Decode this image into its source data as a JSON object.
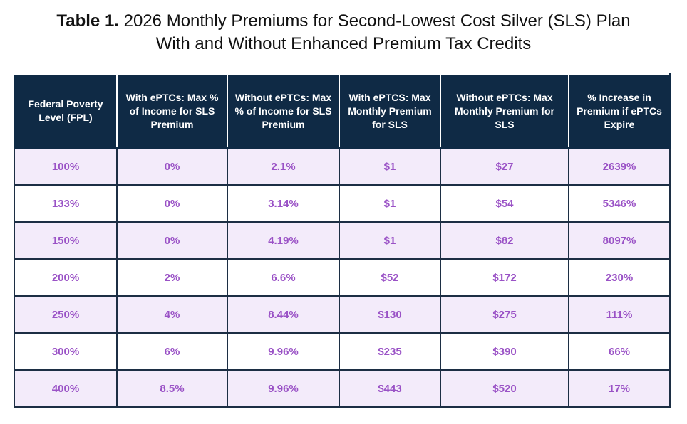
{
  "title": {
    "prefix": "Table 1.",
    "line1": "2026 Monthly Premiums for Second-Lowest Cost Silver (SLS) Plan",
    "line2": "With and Without Enhanced Premium Tax Credits"
  },
  "table": {
    "headers": [
      "Federal Poverty Level (FPL)",
      "With ePTCs: Max % of Income for SLS Premium",
      "Without ePTCs: Max % of Income for SLS Premium",
      "With ePTCS: Max Monthly Premium for SLS",
      "Without ePTCs: Max Monthly Premium for SLS",
      "% Increase in Premium if ePTCs Expire"
    ],
    "rows": [
      [
        "100%",
        "0%",
        "2.1%",
        "$1",
        "$27",
        "2639%"
      ],
      [
        "133%",
        "0%",
        "3.14%",
        "$1",
        "$54",
        "5346%"
      ],
      [
        "150%",
        "0%",
        "4.19%",
        "$1",
        "$82",
        "8097%"
      ],
      [
        "200%",
        "2%",
        "6.6%",
        "$52",
        "$172",
        "230%"
      ],
      [
        "250%",
        "4%",
        "8.44%",
        "$130",
        "$275",
        "111%"
      ],
      [
        "300%",
        "6%",
        "9.96%",
        "$235",
        "$390",
        "66%"
      ],
      [
        "400%",
        "8.5%",
        "9.96%",
        "$443",
        "$520",
        "17%"
      ]
    ]
  },
  "colors": {
    "header_bg": "#0f2a45",
    "value_text": "#9a52c6",
    "row_shade": "#f3ebfa"
  }
}
